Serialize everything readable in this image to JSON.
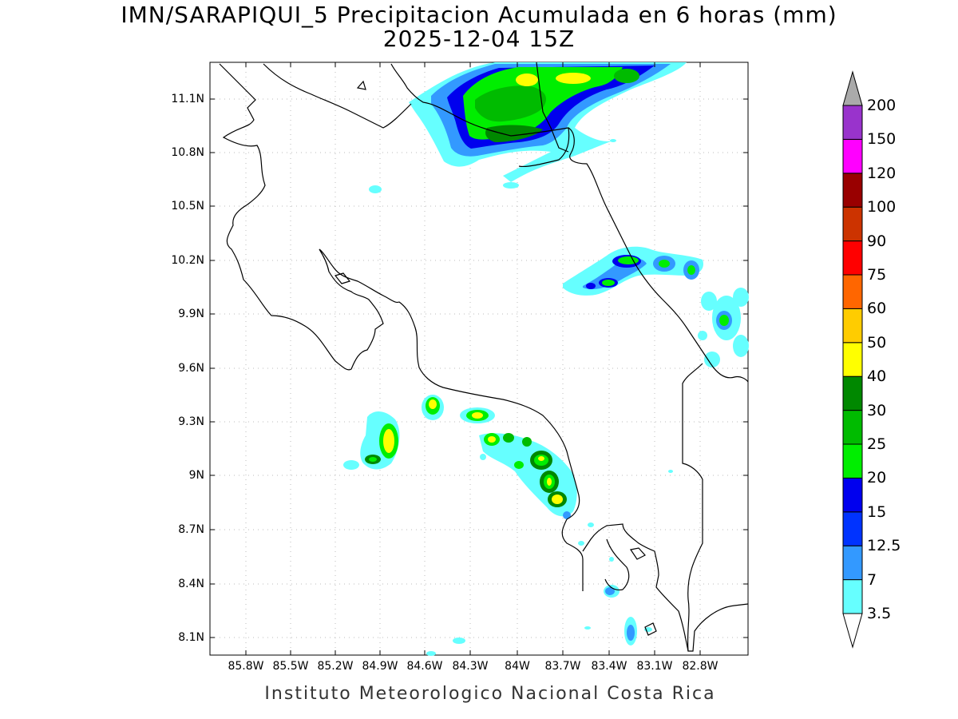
{
  "title_line1": "IMN/SARAPIQUI_5 Precipitacion Acumulada en 6 horas (mm)",
  "title_line2": "2025-12-04 15Z",
  "credit": "Instituto Meteorologico Nacional Costa Rica",
  "y_ticks": [
    "11.1N",
    "10.8N",
    "10.5N",
    "10.2N",
    "9.9N",
    "9.6N",
    "9.3N",
    "9N",
    "8.7N",
    "8.4N",
    "8.1N"
  ],
  "x_ticks": [
    "85.8W",
    "85.5W",
    "85.2W",
    "84.9W",
    "84.6W",
    "84.3W",
    "84W",
    "83.7W",
    "83.4W",
    "83.1W",
    "82.8W"
  ],
  "colorbar": {
    "labels": [
      "3.5",
      "7",
      "12.5",
      "15",
      "20",
      "25",
      "30",
      "40",
      "50",
      "60",
      "75",
      "90",
      "100",
      "120",
      "150",
      "200"
    ],
    "colors": [
      "#66ffff",
      "#3399ff",
      "#0033ff",
      "#0000ee",
      "#00ee00",
      "#00bb00",
      "#008800",
      "#ffff00",
      "#ffcc00",
      "#ff6600",
      "#ff0000",
      "#cc3300",
      "#990000",
      "#ff00ff",
      "#9933cc",
      "#f2f2f2",
      "#aaaaaa"
    ]
  }
}
